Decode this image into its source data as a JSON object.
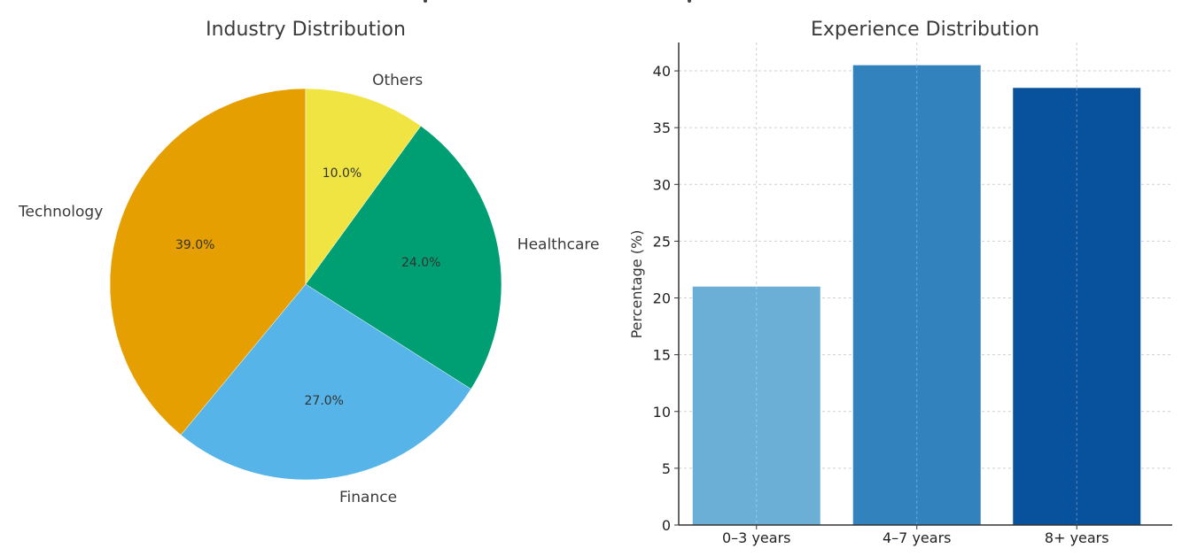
{
  "chart_data": [
    {
      "type": "pie",
      "title": "Industry Distribution",
      "start_angle_deg": 90,
      "direction": "counterclockwise",
      "slices": [
        {
          "label": "Technology",
          "value": 39.0,
          "pct_label": "39.0%",
          "color": "#E69F00"
        },
        {
          "label": "Finance",
          "value": 27.0,
          "pct_label": "27.0%",
          "color": "#56B4E9"
        },
        {
          "label": "Healthcare",
          "value": 24.0,
          "pct_label": "24.0%",
          "color": "#009E73"
        },
        {
          "label": "Others",
          "value": 10.0,
          "pct_label": "10.0%",
          "color": "#F0E442"
        }
      ]
    },
    {
      "type": "bar",
      "title": "Experience Distribution",
      "xlabel": "",
      "ylabel": "Percentage (%)",
      "categories": [
        "0–3 years",
        "4–7 years",
        "8+ years"
      ],
      "values": [
        21.0,
        40.5,
        38.5
      ],
      "colors": [
        "#6BAED6",
        "#3182BD",
        "#08519C"
      ],
      "ylim": [
        0,
        42.5
      ],
      "yticks": [
        0,
        5,
        10,
        15,
        20,
        25,
        30,
        35,
        40
      ],
      "grid": true
    }
  ]
}
